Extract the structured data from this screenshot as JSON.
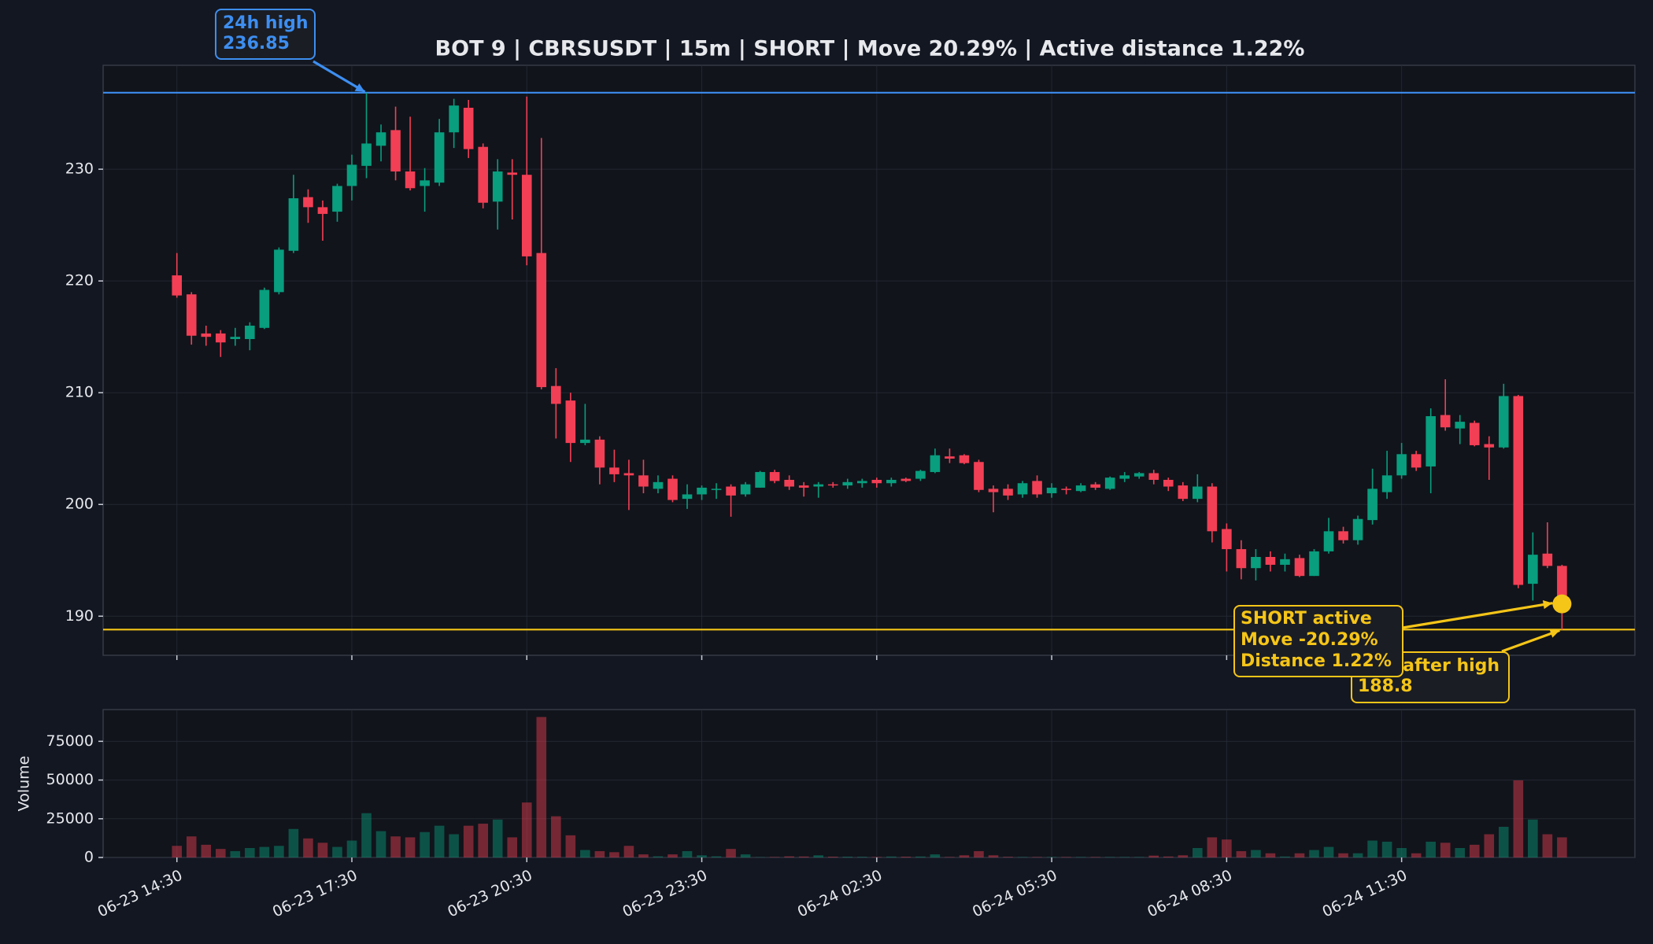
{
  "chart_data": [
    {
      "type": "candlestick",
      "title": "BOT 9 | CBRSUSDT | 15m | SHORT | Move 20.29% | Active distance 1.22%",
      "categories": [
        "06-23 14:30",
        "06-23 14:45",
        "06-23 15:00",
        "06-23 15:15",
        "06-23 15:30",
        "06-23 15:45",
        "06-23 16:00",
        "06-23 16:15",
        "06-23 16:30",
        "06-23 16:45",
        "06-23 17:00",
        "06-23 17:15",
        "06-23 17:30",
        "06-23 17:45",
        "06-23 18:00",
        "06-23 18:15",
        "06-23 18:30",
        "06-23 18:45",
        "06-23 19:00",
        "06-23 19:15",
        "06-23 19:30",
        "06-23 19:45",
        "06-23 20:00",
        "06-23 20:15",
        "06-23 20:30",
        "06-23 20:45",
        "06-23 21:00",
        "06-23 21:15",
        "06-23 21:30",
        "06-23 21:45",
        "06-23 22:00",
        "06-23 22:15",
        "06-23 22:30",
        "06-23 22:45",
        "06-23 23:00",
        "06-23 23:15",
        "06-23 23:30",
        "06-23 23:45",
        "06-24 00:00",
        "06-24 00:15",
        "06-24 00:30",
        "06-24 00:45",
        "06-24 01:00",
        "06-24 01:15",
        "06-24 01:30",
        "06-24 01:45",
        "06-24 02:00",
        "06-24 02:15",
        "06-24 02:30",
        "06-24 02:45",
        "06-24 03:00",
        "06-24 03:15",
        "06-24 03:30",
        "06-24 03:45",
        "06-24 04:00",
        "06-24 04:15",
        "06-24 04:30",
        "06-24 04:45",
        "06-24 05:00",
        "06-24 05:15",
        "06-24 05:30",
        "06-24 05:45",
        "06-24 06:00",
        "06-24 06:15",
        "06-24 06:30",
        "06-24 06:45",
        "06-24 07:00",
        "06-24 07:15",
        "06-24 07:30",
        "06-24 07:45",
        "06-24 08:00",
        "06-24 08:15",
        "06-24 08:30",
        "06-24 08:45",
        "06-24 09:00",
        "06-24 09:15",
        "06-24 09:30",
        "06-24 09:45",
        "06-24 10:00",
        "06-24 10:15",
        "06-24 10:30",
        "06-24 10:45",
        "06-24 11:00",
        "06-24 11:15",
        "06-24 11:30",
        "06-24 11:45",
        "06-24 12:00",
        "06-24 12:15",
        "06-24 12:30",
        "06-24 12:45",
        "06-24 13:00",
        "06-24 13:15",
        "06-24 13:30",
        "06-24 13:45",
        "06-24 14:00",
        "06-24 14:15"
      ],
      "open": [
        220.5,
        218.8,
        215.3,
        215.3,
        214.8,
        214.8,
        215.8,
        219,
        222.7,
        227.5,
        226.6,
        226.2,
        228.5,
        230.3,
        232.1,
        233.5,
        229.8,
        228.5,
        228.8,
        233.3,
        235.5,
        232,
        227.1,
        229.7,
        229.5,
        222.5,
        210.6,
        209.3,
        205.5,
        205.8,
        203.3,
        202.8,
        202.6,
        201.4,
        202.3,
        200.5,
        200.9,
        201.3,
        201.6,
        200.9,
        201.5,
        202.9,
        202.2,
        201.7,
        201.6,
        201.8,
        201.7,
        201.9,
        202.2,
        201.9,
        202.3,
        202.3,
        202.9,
        204.3,
        204.4,
        203.8,
        201.4,
        201.4,
        200.9,
        202.1,
        201,
        201.4,
        201.2,
        201.8,
        201.4,
        202.3,
        202.5,
        202.8,
        202.2,
        201.7,
        200.5,
        201.6,
        197.8,
        196,
        194.3,
        195.3,
        194.6,
        195.2,
        193.6,
        195.8,
        197.6,
        196.8,
        198.6,
        201.1,
        202.6,
        204.5,
        203.4,
        208,
        206.8,
        207.3,
        205.4,
        205.1,
        209.7,
        192.9,
        195.6,
        194.5
      ],
      "high": [
        222.5,
        219,
        216,
        215.6,
        215.8,
        216.3,
        219.4,
        223,
        229.5,
        228.2,
        227.2,
        228.7,
        231.3,
        236.85,
        234,
        235.6,
        234.7,
        230.1,
        234.5,
        236.3,
        236.2,
        232.3,
        230.9,
        230.9,
        236.5,
        232.8,
        212.2,
        210,
        209,
        206.1,
        204.9,
        204,
        204,
        202.6,
        202.6,
        201.8,
        201.7,
        201.9,
        201.8,
        202,
        203,
        203.1,
        202.6,
        202,
        202,
        202,
        202.3,
        202.3,
        202.4,
        202.4,
        202.4,
        203.1,
        205,
        205,
        204.5,
        204,
        201.7,
        201.8,
        202.1,
        202.6,
        201.9,
        201.6,
        201.9,
        202,
        202.5,
        202.9,
        202.9,
        203.1,
        202.4,
        202,
        202.7,
        201.9,
        198.3,
        196.8,
        196,
        195.8,
        195.6,
        195.5,
        196,
        198.8,
        198,
        199,
        203.2,
        204.8,
        205.5,
        204.8,
        208.6,
        211.2,
        208,
        207.5,
        206.1,
        210.8,
        209.8,
        197.5,
        198.4,
        194.6
      ],
      "low": [
        218.5,
        214.3,
        214.2,
        213.2,
        214.2,
        213.8,
        215.7,
        218.8,
        222.5,
        225.2,
        223.6,
        225.3,
        227.2,
        229.2,
        230.7,
        229,
        228.1,
        226.2,
        228.5,
        231.9,
        231,
        226.5,
        224.6,
        225.5,
        221.4,
        210.3,
        205.9,
        203.8,
        205.3,
        201.8,
        202,
        199.5,
        201,
        201,
        200.2,
        199.6,
        200.4,
        200.5,
        198.9,
        200.7,
        201.5,
        201.9,
        201.3,
        200.7,
        200.6,
        201.5,
        201.4,
        201.5,
        201.5,
        201.6,
        202,
        202.1,
        202.8,
        203.7,
        203.6,
        201.1,
        199.3,
        200.4,
        200.6,
        200.6,
        200.6,
        200.9,
        201.1,
        201.3,
        201.3,
        202,
        202.3,
        201.8,
        201.2,
        200.3,
        200.2,
        196.6,
        194,
        193.3,
        193.2,
        194,
        194,
        193.5,
        193.6,
        195.6,
        196.5,
        196.4,
        198.2,
        200.5,
        202.3,
        203,
        201,
        206.6,
        205.4,
        205.2,
        202.2,
        205,
        192.5,
        191.4,
        194.3,
        188.8
      ],
      "close": [
        218.7,
        215.1,
        215,
        214.5,
        215,
        216,
        219.2,
        222.8,
        227.4,
        226.6,
        226,
        228.5,
        230.4,
        232.3,
        233.3,
        229.8,
        228.3,
        229,
        233.3,
        235.7,
        231.8,
        227,
        229.8,
        229.5,
        222.2,
        210.5,
        209,
        205.5,
        205.8,
        203.3,
        202.7,
        202.6,
        201.6,
        202,
        200.4,
        200.9,
        201.5,
        201.4,
        200.8,
        201.8,
        202.9,
        202.1,
        201.6,
        201.5,
        201.8,
        201.7,
        202,
        202.1,
        201.9,
        202.2,
        202.1,
        203,
        204.4,
        204.1,
        203.7,
        201.3,
        201.1,
        200.8,
        201.9,
        200.9,
        201.5,
        201.3,
        201.7,
        201.5,
        202.4,
        202.6,
        202.8,
        202.2,
        201.6,
        200.5,
        201.6,
        197.6,
        196,
        194.3,
        195.3,
        194.6,
        195.1,
        193.6,
        195.8,
        197.6,
        196.8,
        198.7,
        201.4,
        202.6,
        204.5,
        203.3,
        207.9,
        206.9,
        207.4,
        205.3,
        205.1,
        209.7,
        192.8,
        195.5,
        194.5,
        191.1
      ],
      "up_color": "#089e7e",
      "down_color": "#f23f55",
      "ylim": [
        186.5,
        239.3
      ],
      "yticks": [
        190,
        200,
        210,
        220,
        230
      ],
      "xticks": [
        "06-23 14:30",
        "06-23 17:30",
        "06-23 20:30",
        "06-23 23:30",
        "06-24 02:30",
        "06-24 05:30",
        "06-24 08:30",
        "06-24 11:30"
      ],
      "high_marker": {
        "label": "24h high",
        "value": 236.85,
        "color": "#3d8ef0"
      },
      "low_marker": {
        "label": "Low after high",
        "value": 188.8,
        "color": "#f5c518"
      },
      "status": {
        "lines": [
          "SHORT active",
          "Move -20.29%",
          "Distance 1.22%"
        ],
        "color": "#f5c518"
      },
      "grid": true
    },
    {
      "type": "bar",
      "ylabel": "Volume",
      "values": [
        7500,
        13600,
        8200,
        5500,
        4100,
        6100,
        6800,
        7500,
        18400,
        12300,
        9500,
        6800,
        10900,
        28600,
        17000,
        13600,
        13000,
        16400,
        20500,
        15000,
        20500,
        21800,
        24500,
        13000,
        35500,
        90700,
        26600,
        14300,
        4800,
        4100,
        3400,
        7500,
        2000,
        700,
        2000,
        4100,
        1400,
        700,
        5500,
        2000,
        200,
        300,
        700,
        600,
        1400,
        500,
        500,
        400,
        300,
        600,
        500,
        600,
        2000,
        300,
        1400,
        4100,
        1400,
        400,
        300,
        300,
        300,
        300,
        300,
        300,
        300,
        300,
        300,
        1200,
        600,
        1400,
        6100,
        13000,
        11600,
        4100,
        4800,
        2700,
        600,
        2700,
        4800,
        6800,
        2700,
        2700,
        10900,
        10200,
        6100,
        2700,
        10200,
        9500,
        6100,
        8200,
        15000,
        19800,
        49800,
        24500,
        15000,
        13000
      ],
      "ylim": [
        0,
        95500
      ],
      "yticks": [
        0,
        25000,
        50000,
        75000
      ],
      "grid": true
    }
  ]
}
